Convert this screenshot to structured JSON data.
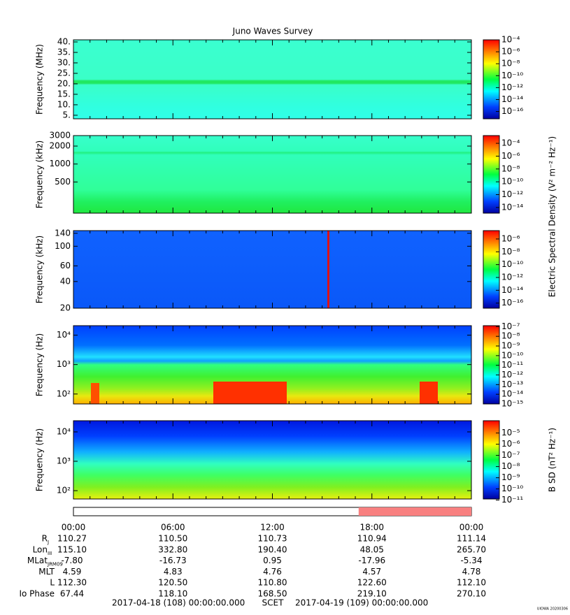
{
  "title": "Juno Waves Survey",
  "time_axis": {
    "xlim": [
      0,
      24
    ],
    "xticks": [
      {
        "value": 0,
        "label": "00:00"
      },
      {
        "value": 6,
        "label": "06:00"
      },
      {
        "value": 12,
        "label": "12:00"
      },
      {
        "value": 18,
        "label": "18:00"
      },
      {
        "value": 24,
        "label": "00:00"
      }
    ],
    "xminorticks": [
      1,
      2,
      3,
      4,
      5,
      7,
      8,
      9,
      10,
      11,
      13,
      14,
      15,
      16,
      17,
      19,
      20,
      21,
      22,
      23
    ],
    "status_segments": [
      {
        "start": 17.2,
        "end": 24,
        "color": "#f88080"
      }
    ]
  },
  "chart_data": [
    {
      "type": "spectrogram",
      "ylabel": "Frequency (MHz)",
      "log": false,
      "ylim": [
        3.3,
        41
      ],
      "yticks": [
        {
          "value": 40,
          "label": "40."
        },
        {
          "value": 35,
          "label": "35."
        },
        {
          "value": 30,
          "label": "30."
        },
        {
          "value": 25,
          "label": "25."
        },
        {
          "value": 20,
          "label": "20."
        },
        {
          "value": 15,
          "label": "15."
        },
        {
          "value": 10,
          "label": "10."
        },
        {
          "value": 5,
          "label": "5."
        }
      ],
      "colorbar": {
        "log": true,
        "clim": [
          6e-18,
          0.0001
        ],
        "ticks": [
          {
            "value": 0.0001,
            "label": "10⁻⁴"
          },
          {
            "value": 1e-06,
            "label": "10⁻⁶"
          },
          {
            "value": 1e-08,
            "label": "10⁻⁸"
          },
          {
            "value": 1e-10,
            "label": "10⁻¹⁰"
          },
          {
            "value": 1e-12,
            "label": "10⁻¹²"
          },
          {
            "value": 1e-14,
            "label": "10⁻¹⁴"
          },
          {
            "value": 1e-16,
            "label": "10⁻¹⁶"
          }
        ]
      }
    },
    {
      "type": "spectrogram",
      "ylabel": "Frequency (kHz)",
      "log": true,
      "ylim": [
        150,
        3000
      ],
      "yticks": [
        3000,
        2000,
        1000,
        500
      ],
      "colorbar": {
        "log": true,
        "clim": [
          1.3e-15,
          0.0016
        ],
        "ticks": [
          {
            "value": 0.0001,
            "label": "10⁻⁴"
          },
          {
            "value": 1e-06,
            "label": "10⁻⁶"
          },
          {
            "value": 1e-08,
            "label": "10⁻⁸"
          },
          {
            "value": 1e-10,
            "label": "10⁻¹⁰"
          },
          {
            "value": 1e-12,
            "label": "10⁻¹²"
          },
          {
            "value": 1e-14,
            "label": "10⁻¹⁴"
          }
        ]
      }
    },
    {
      "type": "spectrogram",
      "ylabel": "Frequency (kHz)",
      "log": true,
      "ylim": [
        20,
        150
      ],
      "yticks": [
        140,
        100,
        60,
        40,
        20
      ],
      "colorbar_label": "Electric Spectral Density (V² m⁻² Hz⁻¹)",
      "colorbar": {
        "log": true,
        "clim": [
          1.6e-17,
          2e-05
        ],
        "ticks": [
          {
            "value": 1e-06,
            "label": "10⁻⁶"
          },
          {
            "value": 1e-08,
            "label": "10⁻⁸"
          },
          {
            "value": 1e-10,
            "label": "10⁻¹⁰"
          },
          {
            "value": 1e-12,
            "label": "10⁻¹²"
          },
          {
            "value": 1e-14,
            "label": "10⁻¹⁴"
          },
          {
            "value": 1e-16,
            "label": "10⁻¹⁶"
          }
        ]
      }
    },
    {
      "type": "spectrogram",
      "ylabel": "Frequency (Hz)",
      "log": true,
      "ylim": [
        46,
        21000
      ],
      "yticks": [
        {
          "value": 10000,
          "label": "10⁴"
        },
        {
          "value": 1000,
          "label": "10³"
        },
        {
          "value": 100,
          "label": "10²"
        }
      ],
      "colorbar": {
        "log": true,
        "clim": [
          1e-15,
          1.26e-07
        ],
        "ticks": [
          {
            "value": 1e-07,
            "label": "10⁻⁷"
          },
          {
            "value": 1e-08,
            "label": "10⁻⁸"
          },
          {
            "value": 1e-09,
            "label": "10⁻⁹"
          },
          {
            "value": 1e-10,
            "label": "10⁻¹⁰"
          },
          {
            "value": 1e-11,
            "label": "10⁻¹¹"
          },
          {
            "value": 1e-12,
            "label": "10⁻¹²"
          },
          {
            "value": 1e-13,
            "label": "10⁻¹³"
          },
          {
            "value": 1e-14,
            "label": "10⁻¹⁴"
          },
          {
            "value": 1e-15,
            "label": "10⁻¹⁵"
          }
        ]
      }
    },
    {
      "type": "spectrogram",
      "ylabel": "Frequency (Hz)",
      "log": true,
      "ylim": [
        52,
        24000
      ],
      "yticks": [
        {
          "value": 10000,
          "label": "10⁴"
        },
        {
          "value": 1000,
          "label": "10³"
        },
        {
          "value": 100,
          "label": "10²"
        }
      ],
      "colorbar_label": "B SD (nT² Hz⁻¹)",
      "colorbar": {
        "log": true,
        "clim": [
          1.26e-11,
          0.000126
        ],
        "ticks": [
          {
            "value": 1e-05,
            "label": "10⁻⁵"
          },
          {
            "value": 1e-06,
            "label": "10⁻⁶"
          },
          {
            "value": 1e-07,
            "label": "10⁻⁷"
          },
          {
            "value": 1e-08,
            "label": "10⁻⁸"
          },
          {
            "value": 1e-09,
            "label": "10⁻⁹"
          },
          {
            "value": 1e-10,
            "label": "10⁻¹⁰"
          },
          {
            "value": 1e-11,
            "label": "10⁻¹¹"
          }
        ]
      }
    }
  ],
  "ephemeris": {
    "rows": [
      {
        "label": "R",
        "sub": "J",
        "values": [
          "110.27",
          "110.50",
          "110.73",
          "110.94",
          "111.14"
        ]
      },
      {
        "label": "Lon",
        "sub": "III",
        "values": [
          "115.10",
          "332.80",
          "190.40",
          "48.05",
          "265.70"
        ]
      },
      {
        "label": "MLat",
        "sub": "JRM09",
        "values": [
          "-7.80",
          "-16.73",
          "0.95",
          "-17.96",
          "-5.34"
        ]
      },
      {
        "label": "MLT",
        "values": [
          "4.59",
          "4.83",
          "4.76",
          "4.57",
          "4.78"
        ]
      },
      {
        "label": "L",
        "values": [
          "112.30",
          "120.50",
          "110.80",
          "122.60",
          "112.10"
        ]
      },
      {
        "label": "Io Phase",
        "values": [
          "67.44",
          "118.10",
          "168.50",
          "219.10",
          "270.10"
        ]
      }
    ]
  },
  "footer": {
    "start": "2017-04-18 (108) 00:00:00.000",
    "center": "SCET",
    "end": "2017-04-19 (109) 00:00:00.000",
    "stamp": "UIOWA 20200306"
  }
}
